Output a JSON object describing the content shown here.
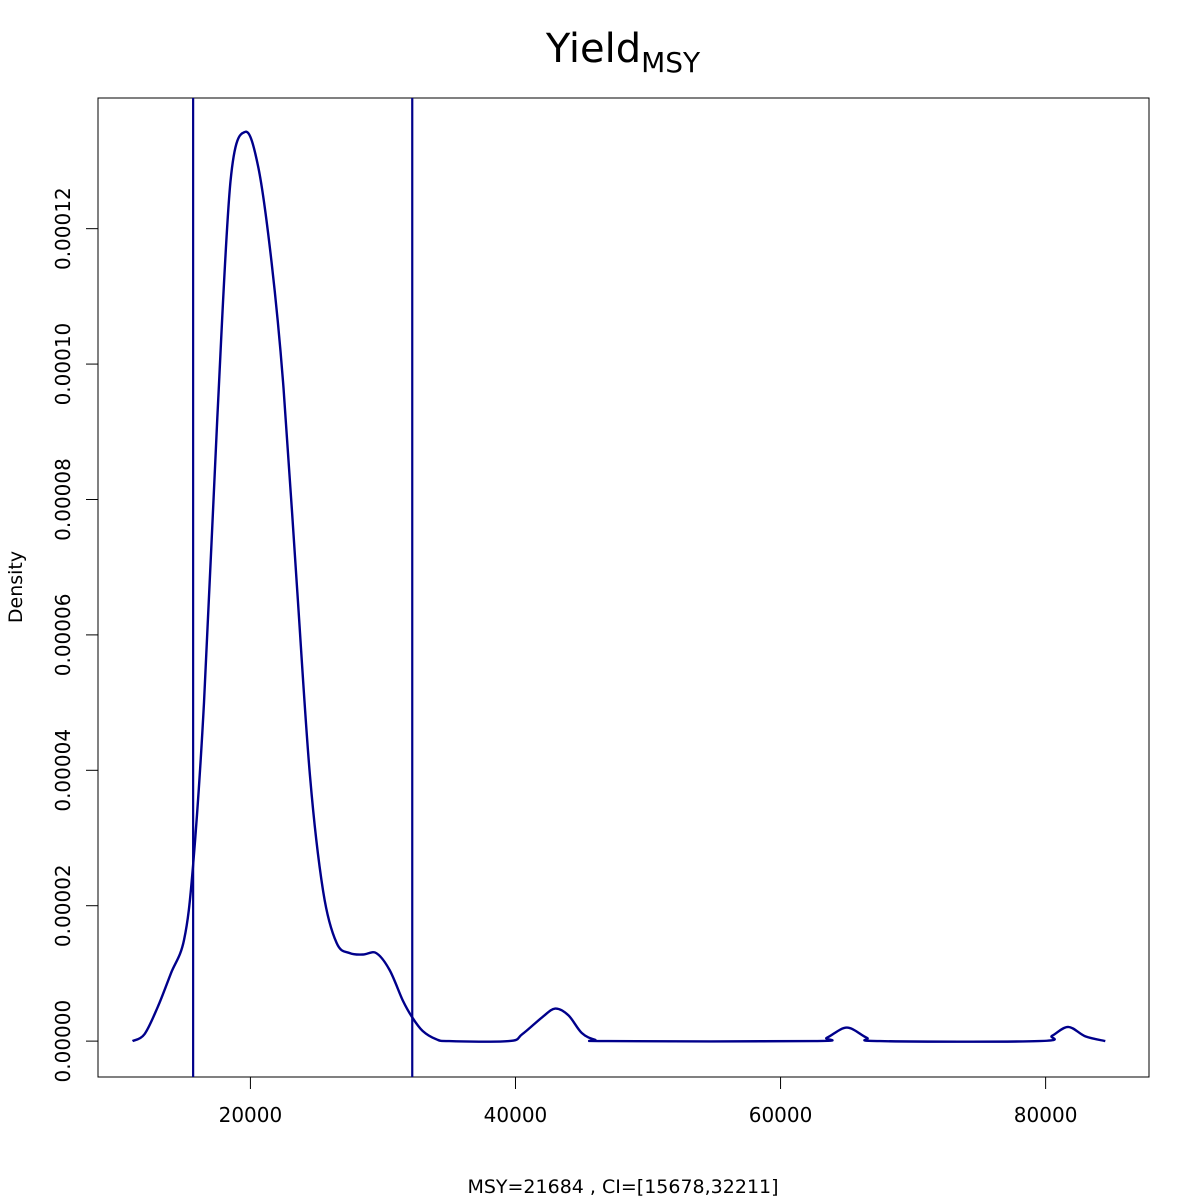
{
  "chart_data": {
    "type": "line",
    "title": "Yield",
    "title_subscript": "MSY",
    "xlabel": "MSY=21684 , CI=[15678,32211]",
    "ylabel": "Density",
    "xlim": [
      8500,
      87800
    ],
    "ylim": [
      -5.3e-06,
      0.0001393
    ],
    "x_ticks": [
      20000,
      40000,
      60000,
      80000
    ],
    "x_tick_labels": [
      "20000",
      "40000",
      "60000",
      "80000"
    ],
    "y_ticks": [
      0,
      2e-05,
      4e-05,
      6e-05,
      8e-05,
      0.0001,
      0.00012
    ],
    "y_tick_labels": [
      "0.00000",
      "0.00002",
      "0.00004",
      "0.00006",
      "0.00008",
      "0.00010",
      "0.00012"
    ],
    "grid": false,
    "legend": "none",
    "line_color": "#00008b",
    "vertical_lines": [
      15678,
      32211
    ],
    "series": [
      {
        "values": [
          [
            11100,
            0.0
          ],
          [
            12000,
            1e-06
          ],
          [
            13000,
            5e-06
          ],
          [
            14000,
            1e-05
          ],
          [
            15000,
            1.5e-05
          ],
          [
            15678,
            2.6e-05
          ],
          [
            16500,
            5e-05
          ],
          [
            17500,
            9.2e-05
          ],
          [
            18500,
            0.000127
          ],
          [
            19600,
            0.0001343
          ],
          [
            20600,
            0.000129
          ],
          [
            21600,
            0.000115
          ],
          [
            22500,
            9.65e-05
          ],
          [
            23500,
            6.75e-05
          ],
          [
            24500,
            3.9e-05
          ],
          [
            25500,
            2.2e-05
          ],
          [
            26500,
            1.45e-05
          ],
          [
            27500,
            1.3e-05
          ],
          [
            28500,
            1.28e-05
          ],
          [
            29500,
            1.3e-05
          ],
          [
            30500,
            1.05e-05
          ],
          [
            31500,
            6e-06
          ],
          [
            32211,
            3.5e-06
          ],
          [
            33000,
            1.5e-06
          ],
          [
            34000,
            3e-07
          ],
          [
            35000,
            0.0
          ],
          [
            39500,
            0.0
          ],
          [
            40500,
            1e-06
          ],
          [
            42000,
            3.5e-06
          ],
          [
            43000,
            4.8e-06
          ],
          [
            44000,
            3.8e-06
          ],
          [
            45000,
            1.2e-06
          ],
          [
            46000,
            2e-07
          ],
          [
            47000,
            0.0
          ],
          [
            62500,
            0.0
          ],
          [
            63500,
            5e-07
          ],
          [
            65000,
            2e-06
          ],
          [
            66500,
            5e-07
          ],
          [
            67500,
            0.0
          ],
          [
            79500,
            0.0
          ],
          [
            80500,
            8e-07
          ],
          [
            81700,
            2.1e-06
          ],
          [
            83000,
            7e-07
          ],
          [
            84500,
            0.0
          ]
        ]
      }
    ]
  }
}
